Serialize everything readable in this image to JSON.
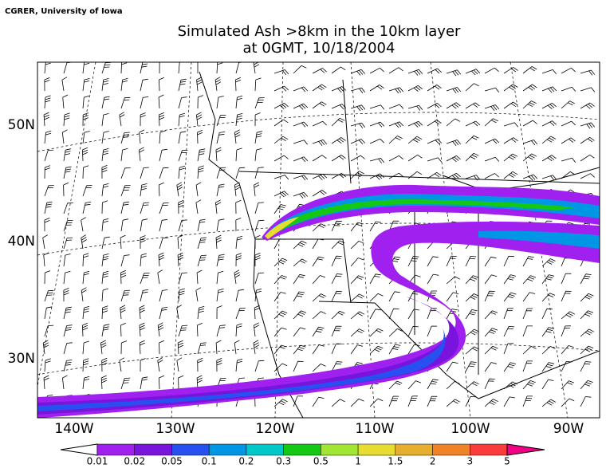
{
  "header": {
    "credit": "CGRER, University of Iowa",
    "title": [
      "Simulated Ash  >8km in the 10km layer",
      "at 0GMT, 10/18/2004"
    ]
  },
  "map": {
    "lat_labels": [
      "50N",
      "40N",
      "30N"
    ],
    "lon_labels": [
      "140W",
      "130W",
      "120W",
      "110W",
      "100W",
      "90W"
    ]
  },
  "colorbar": {
    "ticks": [
      0.01,
      0.02,
      0.05,
      0.1,
      0.2,
      0.3,
      0.5,
      1,
      1.5,
      2,
      3,
      5
    ],
    "colors": [
      "#a020f0",
      "#7814dc",
      "#2850f0",
      "#0096e6",
      "#00c8c8",
      "#14c814",
      "#a0e632",
      "#e6dc32",
      "#e6af2d",
      "#f08228",
      "#fa3c3c",
      "#f00082"
    ]
  }
}
